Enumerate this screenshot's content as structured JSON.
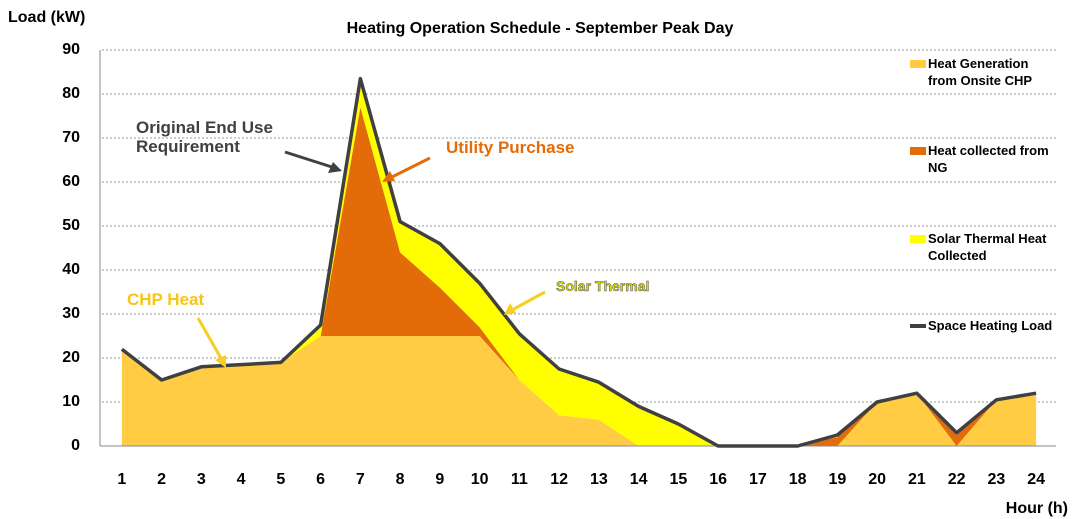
{
  "chart_data": {
    "type": "stacked-area-line",
    "title": "Heating Operation Schedule - September Peak Day",
    "y_label": "Load (kW)",
    "x_label": "Hour (h)",
    "categories": [
      "1",
      "2",
      "3",
      "4",
      "5",
      "6",
      "7",
      "8",
      "9",
      "10",
      "11",
      "12",
      "13",
      "14",
      "15",
      "16",
      "17",
      "18",
      "19",
      "20",
      "21",
      "22",
      "23",
      "24"
    ],
    "ylim": [
      0,
      90
    ],
    "yticks": [
      0,
      10,
      20,
      30,
      40,
      50,
      60,
      70,
      80,
      90
    ],
    "grid": true,
    "series": [
      {
        "name": "Heat Generation from Onsite CHP",
        "color": "#ffcc44",
        "kind": "area",
        "values": [
          22,
          15,
          18,
          18.5,
          19,
          25,
          25,
          25,
          25,
          25,
          15,
          7,
          6,
          0,
          0,
          0,
          0,
          0,
          0,
          10,
          12,
          0,
          10.5,
          12
        ]
      },
      {
        "name": "Heat collected from NG",
        "color": "#e36c09",
        "kind": "area",
        "values": [
          0,
          0,
          0,
          0,
          0,
          0,
          52,
          19,
          11,
          2,
          0,
          0,
          0,
          0,
          0,
          0,
          0,
          0,
          2,
          0,
          0,
          2.5,
          0,
          0
        ]
      },
      {
        "name": "Solar Thermal Heat Collected",
        "color": "#ffff00",
        "kind": "area",
        "values": [
          0,
          0,
          0,
          0,
          0,
          2.5,
          6,
          7,
          10,
          10,
          10.5,
          10.5,
          8.5,
          9,
          5,
          0,
          0,
          0,
          0,
          0,
          0,
          0,
          0,
          0
        ]
      },
      {
        "name": "Space Heating Load",
        "color": "#404040",
        "kind": "line",
        "values": [
          22,
          15,
          18,
          18.5,
          19,
          27.5,
          83.5,
          51,
          46,
          37,
          25.5,
          17.5,
          14.5,
          9,
          5,
          0,
          0,
          0,
          2.5,
          10,
          12,
          3,
          10.5,
          12
        ]
      }
    ],
    "annotations": [
      {
        "text": "Original End Use Requirement",
        "color": "#404040"
      },
      {
        "text": "Utility Purchase",
        "color": "#e36c09"
      },
      {
        "text": "CHP Heat",
        "color": "#f5c518"
      },
      {
        "text": "Solar Thermal",
        "color": "#dddd00"
      }
    ]
  }
}
